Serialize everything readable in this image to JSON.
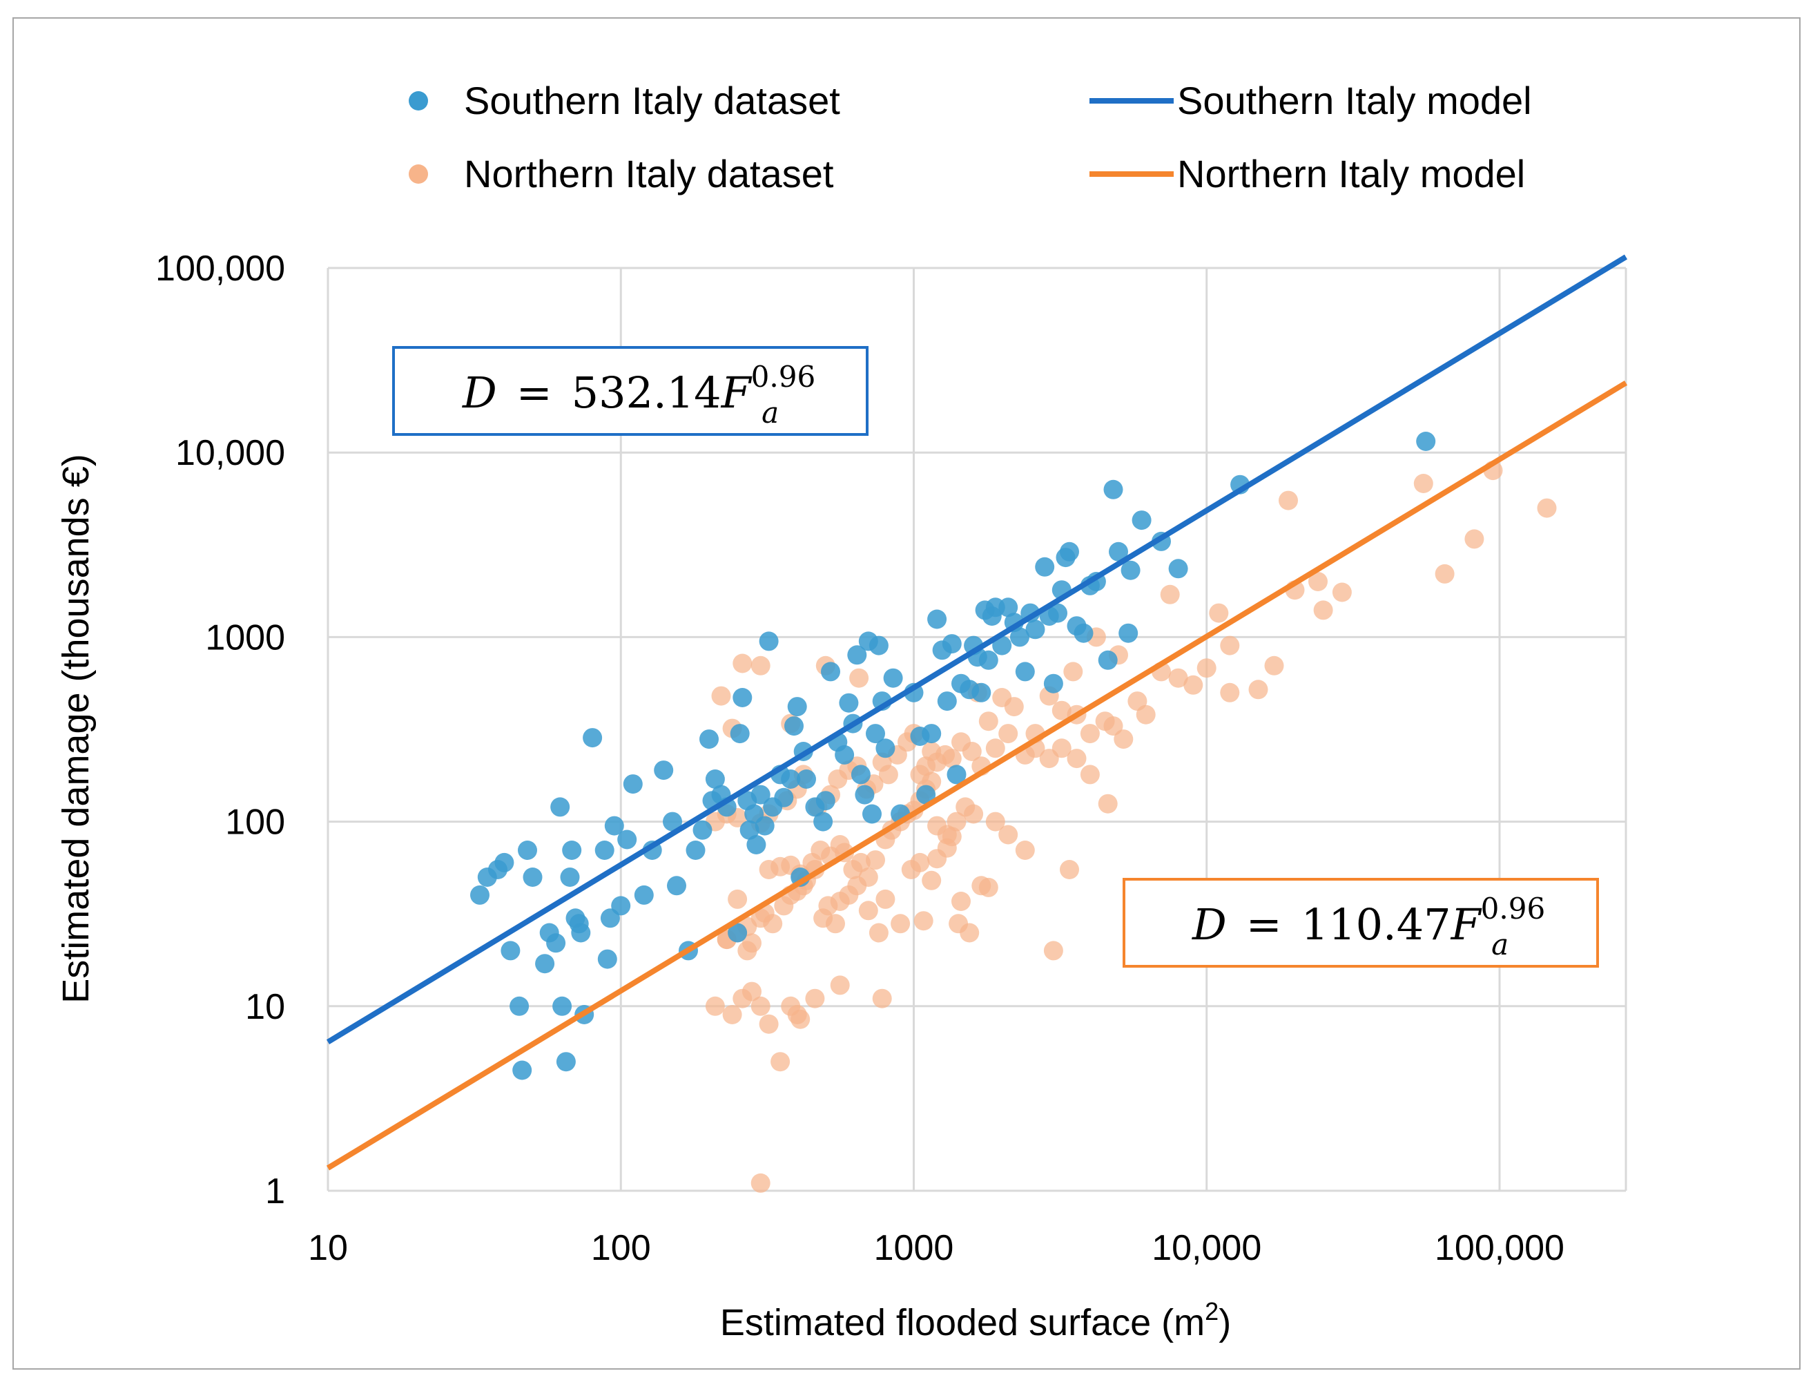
{
  "chart_data": {
    "type": "scatter",
    "x_scale": "log",
    "y_scale": "log",
    "xlim": [
      10,
      270000
    ],
    "ylim": [
      1,
      100000
    ],
    "xlabel": "Estimated flooded surface (m",
    "xlabel_sup": "2",
    "xlabel_end": ")",
    "ylabel": "Estimated damage (thousands €)",
    "x_ticks": [
      10,
      100,
      1000,
      10000,
      100000
    ],
    "x_tick_labels": [
      "10",
      "100",
      "1000",
      "10,000",
      "100,000"
    ],
    "y_ticks": [
      1,
      10,
      100,
      1000,
      10000,
      100000
    ],
    "y_tick_labels": [
      "1",
      "10",
      "100",
      "1000",
      "10,000",
      "100,000"
    ],
    "grid": true,
    "legend": {
      "placement": "top",
      "entries": [
        {
          "label": "Southern Italy dataset",
          "kind": "marker",
          "color": "#3a9bd0"
        },
        {
          "label": "Southern Italy model",
          "kind": "line",
          "color": "#1f6fc6"
        },
        {
          "label": "Northern Italy dataset",
          "kind": "marker",
          "color": "#f7b48a"
        },
        {
          "label": "Northern Italy model",
          "kind": "line",
          "color": "#f5852d"
        }
      ]
    },
    "annotations": [
      {
        "series": "Southern Italy model",
        "prefix": "D",
        "equals": "=",
        "coefficient": "532.14",
        "variable": "F",
        "subscript": "a",
        "exponent": "0.96",
        "border_color": "#1f6fc6",
        "placement": "upper-left"
      },
      {
        "series": "Northern Italy model",
        "prefix": "D",
        "equals": "=",
        "coefficient": "110.47",
        "variable": "F",
        "subscript": "a",
        "exponent": "0.96",
        "border_color": "#f5852d",
        "placement": "lower-right"
      }
    ],
    "series": [
      {
        "name": "Southern Italy model",
        "kind": "line",
        "color": "#1f6fc6",
        "coefficient": 532.14,
        "exponent": 0.96,
        "x": [
          10,
          270000
        ]
      },
      {
        "name": "Northern Italy model",
        "kind": "line",
        "color": "#f5852d",
        "coefficient": 110.47,
        "exponent": 0.96,
        "x": [
          10,
          270000
        ]
      },
      {
        "name": "Northern Italy dataset",
        "kind": "scatter",
        "color": "#f7b48a",
        "opacity": 0.7,
        "points": [
          [
            300,
            1.1
          ],
          [
            350,
            5
          ],
          [
            210,
            10
          ],
          [
            240,
            9
          ],
          [
            260,
            11
          ],
          [
            280,
            12
          ],
          [
            300,
            10
          ],
          [
            320,
            8
          ],
          [
            380,
            10
          ],
          [
            400,
            9
          ],
          [
            410,
            8.5
          ],
          [
            460,
            11
          ],
          [
            560,
            13
          ],
          [
            780,
            11
          ],
          [
            230,
            23
          ],
          [
            250,
            25
          ],
          [
            270,
            27
          ],
          [
            280,
            22
          ],
          [
            300,
            30
          ],
          [
            310,
            32
          ],
          [
            330,
            28
          ],
          [
            360,
            35
          ],
          [
            380,
            40
          ],
          [
            400,
            42
          ],
          [
            420,
            45
          ],
          [
            460,
            55
          ],
          [
            490,
            30
          ],
          [
            510,
            35
          ],
          [
            540,
            28
          ],
          [
            560,
            37
          ],
          [
            600,
            40
          ],
          [
            640,
            45
          ],
          [
            700,
            33
          ],
          [
            760,
            25
          ],
          [
            800,
            38
          ],
          [
            900,
            28
          ],
          [
            980,
            55
          ],
          [
            1050,
            60
          ],
          [
            1080,
            29
          ],
          [
            1150,
            48
          ],
          [
            1200,
            63
          ],
          [
            1300,
            72
          ],
          [
            1350,
            83
          ],
          [
            1420,
            28
          ],
          [
            1450,
            37
          ],
          [
            1550,
            25
          ],
          [
            1700,
            45
          ],
          [
            1800,
            44
          ],
          [
            230,
            23
          ],
          [
            250,
            38
          ],
          [
            270,
            20
          ],
          [
            320,
            55
          ],
          [
            350,
            57
          ],
          [
            380,
            58
          ],
          [
            410,
            52
          ],
          [
            430,
            48
          ],
          [
            450,
            60
          ],
          [
            480,
            70
          ],
          [
            520,
            65
          ],
          [
            560,
            75
          ],
          [
            580,
            68
          ],
          [
            620,
            55
          ],
          [
            660,
            60
          ],
          [
            700,
            50
          ],
          [
            740,
            62
          ],
          [
            800,
            80
          ],
          [
            840,
            90
          ],
          [
            900,
            100
          ],
          [
            950,
            110
          ],
          [
            1000,
            115
          ],
          [
            1050,
            130
          ],
          [
            1100,
            150
          ],
          [
            1150,
            165
          ],
          [
            1200,
            95
          ],
          [
            1300,
            85
          ],
          [
            1400,
            100
          ],
          [
            1500,
            120
          ],
          [
            1600,
            110
          ],
          [
            1900,
            100
          ],
          [
            2100,
            85
          ],
          [
            2400,
            70
          ],
          [
            3400,
            55
          ],
          [
            3000,
            20
          ],
          [
            210,
            100
          ],
          [
            230,
            110
          ],
          [
            250,
            105
          ],
          [
            300,
            98
          ],
          [
            320,
            110
          ],
          [
            370,
            130
          ],
          [
            400,
            150
          ],
          [
            420,
            180
          ],
          [
            470,
            120
          ],
          [
            520,
            140
          ],
          [
            550,
            170
          ],
          [
            600,
            190
          ],
          [
            640,
            200
          ],
          [
            690,
            150
          ],
          [
            730,
            160
          ],
          [
            780,
            210
          ],
          [
            820,
            180
          ],
          [
            880,
            230
          ],
          [
            950,
            270
          ],
          [
            1000,
            300
          ],
          [
            1050,
            180
          ],
          [
            1100,
            200
          ],
          [
            1150,
            240
          ],
          [
            1200,
            210
          ],
          [
            1280,
            230
          ],
          [
            1350,
            220
          ],
          [
            1450,
            270
          ],
          [
            1580,
            240
          ],
          [
            1700,
            200
          ],
          [
            1900,
            250
          ],
          [
            2100,
            300
          ],
          [
            2400,
            230
          ],
          [
            2600,
            250
          ],
          [
            2900,
            220
          ],
          [
            3200,
            250
          ],
          [
            3600,
            220
          ],
          [
            4000,
            180
          ],
          [
            4600,
            125
          ],
          [
            1650,
            500
          ],
          [
            1800,
            350
          ],
          [
            2000,
            470
          ],
          [
            2200,
            420
          ],
          [
            2600,
            300
          ],
          [
            2900,
            480
          ],
          [
            3200,
            400
          ],
          [
            3600,
            380
          ],
          [
            4000,
            300
          ],
          [
            4500,
            350
          ],
          [
            4800,
            330
          ],
          [
            5200,
            280
          ],
          [
            5800,
            450
          ],
          [
            6200,
            380
          ],
          [
            7000,
            650
          ],
          [
            8000,
            600
          ],
          [
            9000,
            550
          ],
          [
            10000,
            680
          ],
          [
            12000,
            500
          ],
          [
            15000,
            520
          ],
          [
            17000,
            700
          ],
          [
            3500,
            650
          ],
          [
            4200,
            1000
          ],
          [
            5000,
            800
          ],
          [
            7500,
            1700
          ],
          [
            11000,
            1350
          ],
          [
            12000,
            900
          ],
          [
            20000,
            1800
          ],
          [
            24000,
            2000
          ],
          [
            25000,
            1400
          ],
          [
            29000,
            1750
          ],
          [
            19000,
            5500
          ],
          [
            55000,
            6800
          ],
          [
            65000,
            2200
          ],
          [
            82000,
            3400
          ],
          [
            95000,
            8000
          ],
          [
            145000,
            5000
          ],
          [
            220,
            480
          ],
          [
            240,
            320
          ],
          [
            260,
            720
          ],
          [
            300,
            700
          ],
          [
            380,
            340
          ],
          [
            500,
            700
          ],
          [
            650,
            600
          ]
        ]
      },
      {
        "name": "Southern Italy dataset",
        "kind": "scatter",
        "color": "#3a9bd0",
        "opacity": 0.85,
        "points": [
          [
            33,
            40
          ],
          [
            35,
            50
          ],
          [
            38,
            55
          ],
          [
            40,
            60
          ],
          [
            42,
            20
          ],
          [
            45,
            10
          ],
          [
            46,
            4.5
          ],
          [
            48,
            70
          ],
          [
            50,
            50
          ],
          [
            55,
            17
          ],
          [
            57,
            25
          ],
          [
            60,
            22
          ],
          [
            62,
            120
          ],
          [
            63,
            10
          ],
          [
            65,
            5
          ],
          [
            67,
            50
          ],
          [
            68,
            70
          ],
          [
            70,
            30
          ],
          [
            72,
            28
          ],
          [
            73,
            25
          ],
          [
            75,
            9
          ],
          [
            80,
            285
          ],
          [
            88,
            70
          ],
          [
            90,
            18
          ],
          [
            92,
            30
          ],
          [
            95,
            95
          ],
          [
            100,
            35
          ],
          [
            105,
            80
          ],
          [
            110,
            160
          ],
          [
            120,
            40
          ],
          [
            128,
            70
          ],
          [
            140,
            190
          ],
          [
            150,
            100
          ],
          [
            155,
            45
          ],
          [
            170,
            20
          ],
          [
            180,
            70
          ],
          [
            190,
            90
          ],
          [
            200,
            280
          ],
          [
            205,
            130
          ],
          [
            210,
            170
          ],
          [
            220,
            140
          ],
          [
            230,
            120
          ],
          [
            250,
            25
          ],
          [
            255,
            300
          ],
          [
            260,
            470
          ],
          [
            270,
            130
          ],
          [
            275,
            90
          ],
          [
            285,
            110
          ],
          [
            290,
            75
          ],
          [
            300,
            140
          ],
          [
            310,
            95
          ],
          [
            320,
            950
          ],
          [
            330,
            120
          ],
          [
            350,
            180
          ],
          [
            360,
            135
          ],
          [
            380,
            170
          ],
          [
            390,
            330
          ],
          [
            400,
            420
          ],
          [
            410,
            50
          ],
          [
            420,
            240
          ],
          [
            430,
            170
          ],
          [
            460,
            120
          ],
          [
            490,
            100
          ],
          [
            500,
            130
          ],
          [
            520,
            650
          ],
          [
            550,
            270
          ],
          [
            580,
            230
          ],
          [
            600,
            440
          ],
          [
            620,
            340
          ],
          [
            640,
            800
          ],
          [
            660,
            180
          ],
          [
            680,
            140
          ],
          [
            700,
            950
          ],
          [
            720,
            110
          ],
          [
            740,
            300
          ],
          [
            760,
            900
          ],
          [
            780,
            450
          ],
          [
            800,
            250
          ],
          [
            850,
            600
          ],
          [
            900,
            110
          ],
          [
            1000,
            500
          ],
          [
            1050,
            290
          ],
          [
            1100,
            140
          ],
          [
            1150,
            300
          ],
          [
            1200,
            1250
          ],
          [
            1250,
            850
          ],
          [
            1300,
            450
          ],
          [
            1350,
            920
          ],
          [
            1400,
            180
          ],
          [
            1450,
            560
          ],
          [
            1550,
            520
          ],
          [
            1600,
            900
          ],
          [
            1650,
            780
          ],
          [
            1700,
            500
          ],
          [
            1750,
            1400
          ],
          [
            1800,
            750
          ],
          [
            1850,
            1300
          ],
          [
            1900,
            1450
          ],
          [
            2000,
            900
          ],
          [
            2100,
            1450
          ],
          [
            2200,
            1200
          ],
          [
            2300,
            1000
          ],
          [
            2400,
            650
          ],
          [
            2500,
            1350
          ],
          [
            2600,
            1100
          ],
          [
            2800,
            2400
          ],
          [
            2900,
            1300
          ],
          [
            3000,
            560
          ],
          [
            3100,
            1350
          ],
          [
            3200,
            1800
          ],
          [
            3300,
            2700
          ],
          [
            3400,
            2900
          ],
          [
            3600,
            1150
          ],
          [
            3800,
            1050
          ],
          [
            4000,
            1900
          ],
          [
            4200,
            2000
          ],
          [
            4600,
            750
          ],
          [
            4800,
            6300
          ],
          [
            5000,
            2900
          ],
          [
            5400,
            1050
          ],
          [
            5500,
            2300
          ],
          [
            6000,
            4300
          ],
          [
            7000,
            3300
          ],
          [
            8000,
            2350
          ],
          [
            13000,
            6700
          ],
          [
            56000,
            11500
          ]
        ]
      }
    ]
  }
}
